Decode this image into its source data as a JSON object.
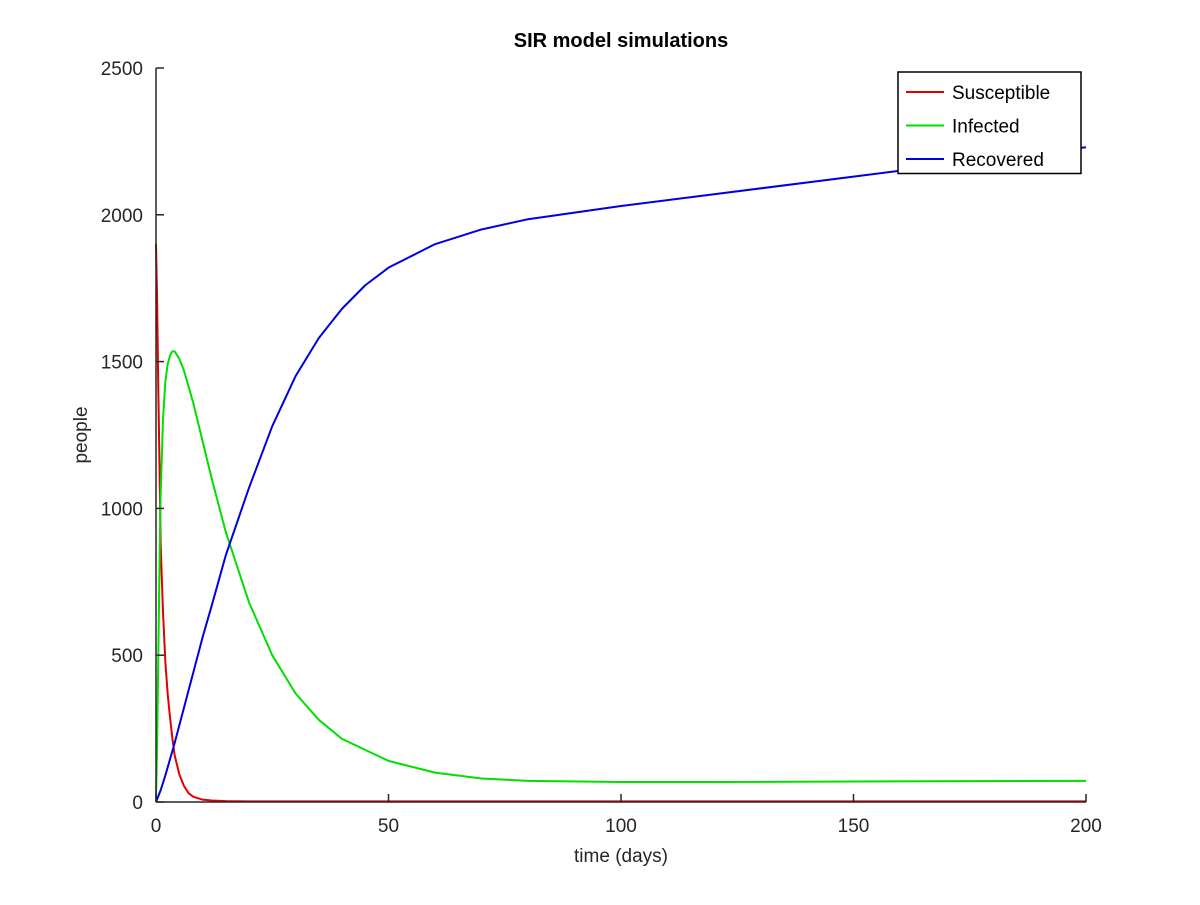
{
  "chart_data": {
    "type": "line",
    "title": "SIR model simulations",
    "xlabel": "time (days)",
    "ylabel": "people",
    "xlim": [
      0,
      200
    ],
    "ylim": [
      0,
      2500
    ],
    "xticks": [
      0,
      50,
      100,
      150,
      200
    ],
    "yticks": [
      0,
      500,
      1000,
      1500,
      2000,
      2500
    ],
    "grid": false,
    "legend_position": "top-right",
    "series": [
      {
        "name": "Susceptible",
        "color": "#e00000",
        "x": [
          0,
          0.25,
          0.5,
          0.75,
          1,
          1.5,
          2,
          2.5,
          3,
          3.5,
          4,
          5,
          6,
          7,
          8,
          10,
          12,
          15,
          20,
          30,
          50,
          100,
          150,
          200
        ],
        "y": [
          1900,
          1700,
          1400,
          1150,
          880,
          650,
          480,
          370,
          290,
          220,
          160,
          95,
          55,
          30,
          18,
          8,
          5,
          3,
          2,
          2,
          2,
          2,
          2,
          2
        ]
      },
      {
        "name": "Infected",
        "color": "#00e000",
        "x": [
          0,
          0.25,
          0.5,
          0.75,
          1,
          1.5,
          2,
          2.5,
          3,
          3.5,
          4,
          5,
          6,
          8,
          10,
          12,
          15,
          20,
          25,
          30,
          35,
          40,
          50,
          60,
          70,
          80,
          100,
          120,
          150,
          200
        ],
        "y": [
          10,
          200,
          500,
          800,
          1050,
          1300,
          1430,
          1490,
          1520,
          1535,
          1535,
          1510,
          1470,
          1360,
          1230,
          1100,
          920,
          680,
          500,
          370,
          280,
          215,
          140,
          100,
          80,
          72,
          68,
          68,
          70,
          72
        ]
      },
      {
        "name": "Recovered",
        "color": "#0000e0",
        "x": [
          0,
          1,
          2,
          4,
          6,
          8,
          10,
          12,
          15,
          20,
          25,
          30,
          35,
          40,
          45,
          50,
          60,
          70,
          80,
          100,
          120,
          150,
          175,
          200
        ],
        "y": [
          0,
          40,
          90,
          200,
          320,
          440,
          560,
          670,
          840,
          1070,
          1280,
          1450,
          1580,
          1680,
          1760,
          1820,
          1900,
          1950,
          1985,
          2030,
          2070,
          2130,
          2180,
          2230
        ]
      }
    ]
  }
}
